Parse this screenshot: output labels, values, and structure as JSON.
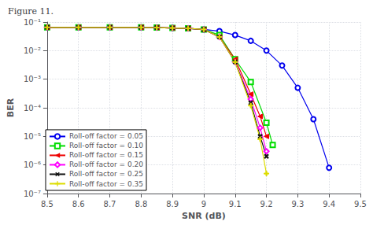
{
  "chart_data": {
    "type": "line",
    "title": "Figure 11.",
    "xlabel": "SNR (dB)",
    "ylabel": "BER",
    "log": "y",
    "grid": true,
    "legend": "lower left",
    "xlim": [
      8.5,
      9.5
    ],
    "ylim": [
      1e-07,
      0.1
    ],
    "xticks": [
      8.5,
      8.6,
      8.7,
      8.8,
      8.9,
      9,
      9.1,
      9.2,
      9.3,
      9.4,
      9.5
    ],
    "yticks": [
      {
        "value": 1e-07,
        "label": "10⁻⁷"
      },
      {
        "value": 1e-06,
        "label": "10⁻⁶"
      },
      {
        "value": 1e-05,
        "label": "10⁻⁵"
      },
      {
        "value": 0.0001,
        "label": "10⁻⁴"
      },
      {
        "value": 0.001,
        "label": "10⁻³"
      },
      {
        "value": 0.01,
        "label": "10⁻²"
      },
      {
        "value": 0.1,
        "label": "10⁻¹"
      }
    ],
    "series": [
      {
        "name": "Roll-off factor = 0.05",
        "color": "#0000EE",
        "marker": "circle",
        "x": [
          8.5,
          8.6,
          8.7,
          8.8,
          8.85,
          8.9,
          8.95,
          9.0,
          9.05,
          9.1,
          9.15,
          9.2,
          9.25,
          9.3,
          9.35,
          9.4
        ],
        "values": [
          0.065,
          0.065,
          0.065,
          0.065,
          0.064,
          0.062,
          0.06,
          0.055,
          0.048,
          0.035,
          0.022,
          0.01,
          0.003,
          0.0005,
          4e-05,
          8e-07
        ]
      },
      {
        "name": "Roll-off factor = 0.10",
        "color": "#00DD00",
        "marker": "square",
        "x": [
          8.5,
          8.6,
          8.7,
          8.8,
          8.85,
          8.9,
          8.95,
          9.0,
          9.05,
          9.1,
          9.15,
          9.2,
          9.22
        ],
        "values": [
          0.065,
          0.065,
          0.065,
          0.065,
          0.064,
          0.062,
          0.06,
          0.055,
          0.035,
          0.005,
          0.0008,
          3e-05,
          5e-06
        ]
      },
      {
        "name": "Roll-off factor = 0.15",
        "color": "#EE0000",
        "marker": "triangle-left",
        "x": [
          8.5,
          8.6,
          8.7,
          8.8,
          8.85,
          8.9,
          8.95,
          9.0,
          9.05,
          9.1,
          9.15,
          9.18,
          9.2
        ],
        "values": [
          0.065,
          0.065,
          0.065,
          0.065,
          0.064,
          0.062,
          0.06,
          0.055,
          0.03,
          0.005,
          0.0003,
          5e-05,
          1e-05
        ]
      },
      {
        "name": "Roll-off factor = 0.20",
        "color": "#FF00FF",
        "marker": "diamond",
        "x": [
          8.5,
          8.6,
          8.7,
          8.8,
          8.85,
          8.9,
          8.95,
          9.0,
          9.05,
          9.1,
          9.15,
          9.18,
          9.2
        ],
        "values": [
          0.065,
          0.065,
          0.065,
          0.065,
          0.064,
          0.062,
          0.06,
          0.055,
          0.03,
          0.004,
          0.0002,
          2e-05,
          3e-06
        ]
      },
      {
        "name": "Roll-off factor = 0.25",
        "color": "#111111",
        "marker": "x",
        "x": [
          8.5,
          8.6,
          8.7,
          8.8,
          8.85,
          8.9,
          8.95,
          9.0,
          9.05,
          9.1,
          9.15,
          9.18,
          9.2
        ],
        "values": [
          0.065,
          0.065,
          0.065,
          0.065,
          0.064,
          0.062,
          0.06,
          0.055,
          0.03,
          0.004,
          0.00015,
          1e-05,
          2e-06
        ]
      },
      {
        "name": "Roll-off factor = 0.35",
        "color": "#DDDD00",
        "marker": "plus",
        "x": [
          8.5,
          8.6,
          8.7,
          8.8,
          8.85,
          8.9,
          8.95,
          9.0,
          9.05,
          9.1,
          9.15,
          9.18,
          9.2
        ],
        "values": [
          0.065,
          0.065,
          0.065,
          0.065,
          0.064,
          0.062,
          0.06,
          0.055,
          0.03,
          0.004,
          0.00012,
          8e-06,
          5e-07
        ]
      }
    ]
  }
}
